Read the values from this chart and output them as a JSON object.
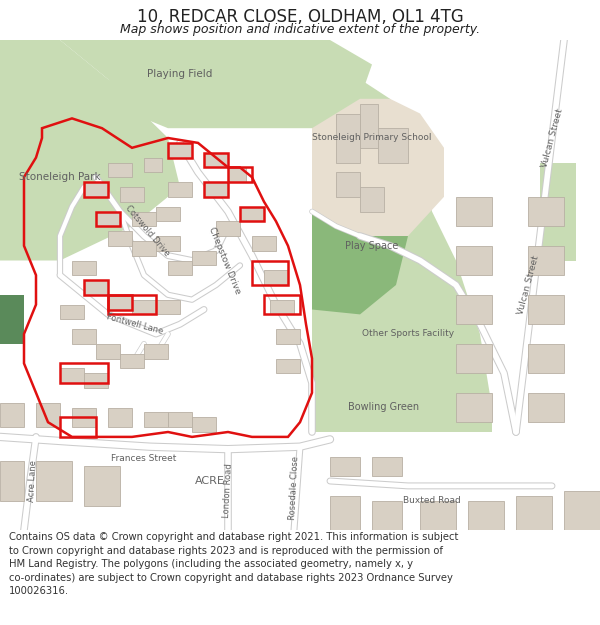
{
  "title": "10, REDCAR CLOSE, OLDHAM, OL1 4TG",
  "subtitle": "Map shows position and indicative extent of the property.",
  "footer": "Contains OS data © Crown copyright and database right 2021. This information is subject\nto Crown copyright and database rights 2023 and is reproduced with the permission of\nHM Land Registry. The polygons (including the associated geometry, namely x, y\nco-ordinates) are subject to Crown copyright and database rights 2023 Ordnance Survey\n100026316.",
  "bg_color": "#f2efe9",
  "green_light": "#c8dcb4",
  "green_mid": "#8ab87a",
  "green_dark": "#5a8a5a",
  "beige": "#e8dfd0",
  "road_color": "#ffffff",
  "road_edge": "#cccccc",
  "bldg_fill": "#d8d0c4",
  "bldg_edge": "#b8b0a4",
  "red_line": "#e01010",
  "text_dark": "#606060",
  "title_color": "#222222",
  "footer_color": "#333333"
}
